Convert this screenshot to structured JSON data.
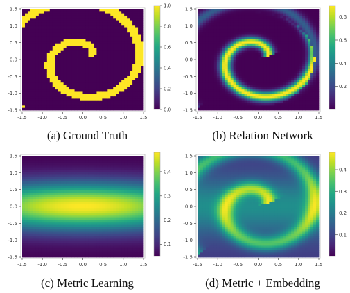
{
  "chart_data": [
    {
      "type": "heatmap",
      "id": "a",
      "caption": "(a) Ground Truth",
      "field": "spiral",
      "x_ticks": [
        "-1.5",
        "-1.0",
        "-0.5",
        "0.0",
        "0.5",
        "1.0",
        "1.5"
      ],
      "y_ticks": [
        "1.5",
        "1.0",
        "0.5",
        "0.0",
        "-0.5",
        "-1.0",
        "-1.5"
      ],
      "xlim": [
        -1.5,
        1.5
      ],
      "ylim": [
        -1.5,
        1.5
      ],
      "colorbar": {
        "range": [
          0,
          1.0
        ],
        "ticks": [
          "1.0",
          "0.8",
          "0.6",
          "0.4",
          "0.2",
          "0.0"
        ]
      }
    },
    {
      "type": "heatmap",
      "id": "b",
      "caption": "(b) Relation Network",
      "field": "spiral-blur",
      "x_ticks": [
        "-1.5",
        "-1.0",
        "-0.5",
        "0.0",
        "0.5",
        "1.0",
        "1.5"
      ],
      "y_ticks": [
        "1.5",
        "1.0",
        "0.5",
        "0.0",
        "-0.5",
        "-1.0",
        "-1.5"
      ],
      "xlim": [
        -1.5,
        1.5
      ],
      "ylim": [
        -1.5,
        1.5
      ],
      "colorbar": {
        "range": [
          0,
          0.9
        ],
        "ticks": [
          "0.8",
          "0.6",
          "0.4",
          "0.2"
        ]
      }
    },
    {
      "type": "heatmap",
      "id": "c",
      "caption": "(c) Metric Learning",
      "field": "band",
      "x_ticks": [
        "-1.5",
        "-1.0",
        "-0.5",
        "0.0",
        "0.5",
        "1.0",
        "1.5"
      ],
      "y_ticks": [
        "1.5",
        "1.0",
        "0.5",
        "0.0",
        "-0.5",
        "-1.0",
        "-1.5"
      ],
      "xlim": [
        -1.5,
        1.5
      ],
      "ylim": [
        -1.5,
        1.5
      ],
      "colorbar": {
        "range": [
          0.05,
          0.48
        ],
        "ticks": [
          "0.4",
          "0.3",
          "0.2",
          "0.1"
        ]
      }
    },
    {
      "type": "heatmap",
      "id": "d",
      "caption": "(d) Metric + Embedding",
      "field": "mixed",
      "x_ticks": [
        "-1.5",
        "-1.0",
        "-0.5",
        "0.0",
        "0.5",
        "1.0",
        "1.5"
      ],
      "y_ticks": [
        "1.5",
        "1.0",
        "0.5",
        "0.0",
        "-0.5",
        "-1.0",
        "-1.5"
      ],
      "xlim": [
        -1.5,
        1.5
      ],
      "ylim": [
        -1.5,
        1.5
      ],
      "colorbar": {
        "range": [
          0,
          0.48
        ],
        "ticks": [
          "0.4",
          "0.3",
          "0.2",
          "0.1"
        ]
      }
    }
  ]
}
